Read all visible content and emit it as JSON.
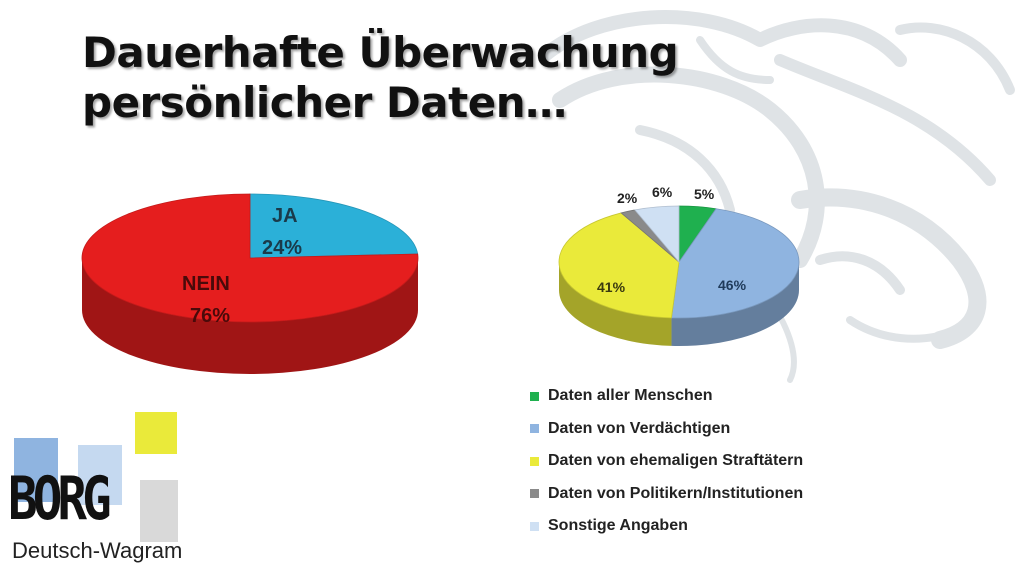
{
  "title": {
    "line1": "Dauerhafte Überwachung",
    "line2": "persönlicher Daten…"
  },
  "chart_data": [
    {
      "type": "pie",
      "categories": [
        "JA",
        "NEIN"
      ],
      "values": [
        24,
        76
      ],
      "labels": [
        "24%",
        "76%"
      ],
      "colors": [
        "#2bb0d8",
        "#e51e1e"
      ],
      "title": "",
      "legend": "none"
    },
    {
      "type": "pie",
      "categories": [
        "Daten aller Menschen",
        "Daten von Verdächtigen",
        "Daten von ehemaligen Straftätern",
        "Daten von Politikern/Institutionen",
        "Sonstige Angaben"
      ],
      "values": [
        5,
        46,
        41,
        2,
        6
      ],
      "labels": [
        "5%",
        "46%",
        "41%",
        "2%",
        "6%"
      ],
      "colors": [
        "#1fb04f",
        "#8fb4e0",
        "#eaea3a",
        "#8a8a8a",
        "#cfe0f3"
      ],
      "title": "",
      "legend": "bottom"
    }
  ],
  "logo": {
    "word": "BORG",
    "subtitle": "Deutsch-Wagram",
    "colors": [
      "#8fb4e0",
      "#c5d9f0",
      "#eaea3a"
    ]
  }
}
